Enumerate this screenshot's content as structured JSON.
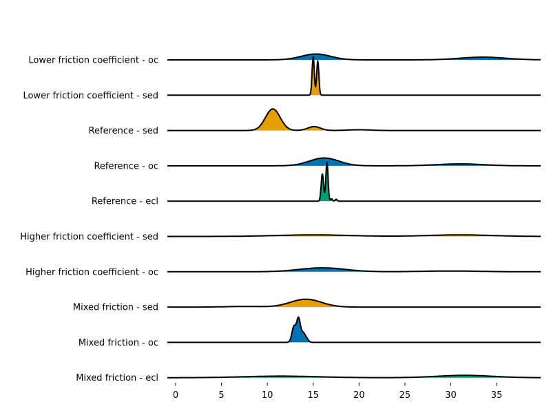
{
  "chart_data": {
    "type": "area",
    "subtype": "ridgeline",
    "title": "",
    "xlabel": "",
    "ylabel": "",
    "xlim": [
      -0.9,
      39.8
    ],
    "x_ticks": [
      0,
      5,
      10,
      15,
      20,
      25,
      30,
      35
    ],
    "grid": false,
    "legend": "none",
    "colors": {
      "oc": "#0072b2",
      "sed": "#e69f00",
      "ecl": "#009e73",
      "line": "#000000"
    },
    "series": [
      {
        "name": "Lower friction coefficient - oc",
        "group": "oc",
        "peaks": [
          {
            "mu": 15.3,
            "sigma": 1.6,
            "height": 0.15
          },
          {
            "mu": 33.5,
            "sigma": 2.5,
            "height": 0.07
          }
        ]
      },
      {
        "name": "Lower friction coefficient - sed",
        "group": "sed",
        "peaks": [
          {
            "mu": 15.0,
            "sigma": 0.12,
            "height": 1.0
          },
          {
            "mu": 15.5,
            "sigma": 0.12,
            "height": 0.88
          }
        ]
      },
      {
        "name": "Reference - sed",
        "group": "sed",
        "peaks": [
          {
            "mu": 10.6,
            "sigma": 0.8,
            "height": 0.55
          },
          {
            "mu": 15.1,
            "sigma": 0.7,
            "height": 0.1
          },
          {
            "mu": 20.0,
            "sigma": 1.2,
            "height": 0.02
          }
        ]
      },
      {
        "name": "Reference - oc",
        "group": "oc",
        "peaks": [
          {
            "mu": 16.2,
            "sigma": 1.6,
            "height": 0.2
          },
          {
            "mu": 31.0,
            "sigma": 2.5,
            "height": 0.05
          }
        ]
      },
      {
        "name": "Reference - ecl",
        "group": "ecl",
        "peaks": [
          {
            "mu": 16.0,
            "sigma": 0.13,
            "height": 0.7
          },
          {
            "mu": 16.5,
            "sigma": 0.12,
            "height": 1.0
          },
          {
            "mu": 17.0,
            "sigma": 0.1,
            "height": 0.06
          },
          {
            "mu": 17.5,
            "sigma": 0.1,
            "height": 0.05
          }
        ]
      },
      {
        "name": "Higher friction coefficient - sed",
        "group": "sed",
        "peaks": [
          {
            "mu": 15.0,
            "sigma": 4.0,
            "height": 0.04
          },
          {
            "mu": 31.0,
            "sigma": 3.5,
            "height": 0.04
          }
        ]
      },
      {
        "name": "Higher friction coefficient - oc",
        "group": "oc",
        "peaks": [
          {
            "mu": 16.0,
            "sigma": 2.5,
            "height": 0.1
          },
          {
            "mu": 30.0,
            "sigma": 3.0,
            "height": 0.02
          }
        ]
      },
      {
        "name": "Mixed friction - sed",
        "group": "sed",
        "peaks": [
          {
            "mu": 14.2,
            "sigma": 1.7,
            "height": 0.2
          },
          {
            "mu": 7.5,
            "sigma": 2.0,
            "height": 0.015
          }
        ]
      },
      {
        "name": "Mixed friction - oc",
        "group": "oc",
        "peaks": [
          {
            "mu": 12.9,
            "sigma": 0.22,
            "height": 0.4
          },
          {
            "mu": 13.4,
            "sigma": 0.2,
            "height": 0.6
          },
          {
            "mu": 13.9,
            "sigma": 0.22,
            "height": 0.23
          },
          {
            "mu": 14.3,
            "sigma": 0.2,
            "height": 0.08
          }
        ]
      },
      {
        "name": "Mixed friction - ecl",
        "group": "ecl",
        "peaks": [
          {
            "mu": 11.5,
            "sigma": 4.0,
            "height": 0.04
          },
          {
            "mu": 31.5,
            "sigma": 3.0,
            "height": 0.06
          }
        ]
      }
    ]
  }
}
